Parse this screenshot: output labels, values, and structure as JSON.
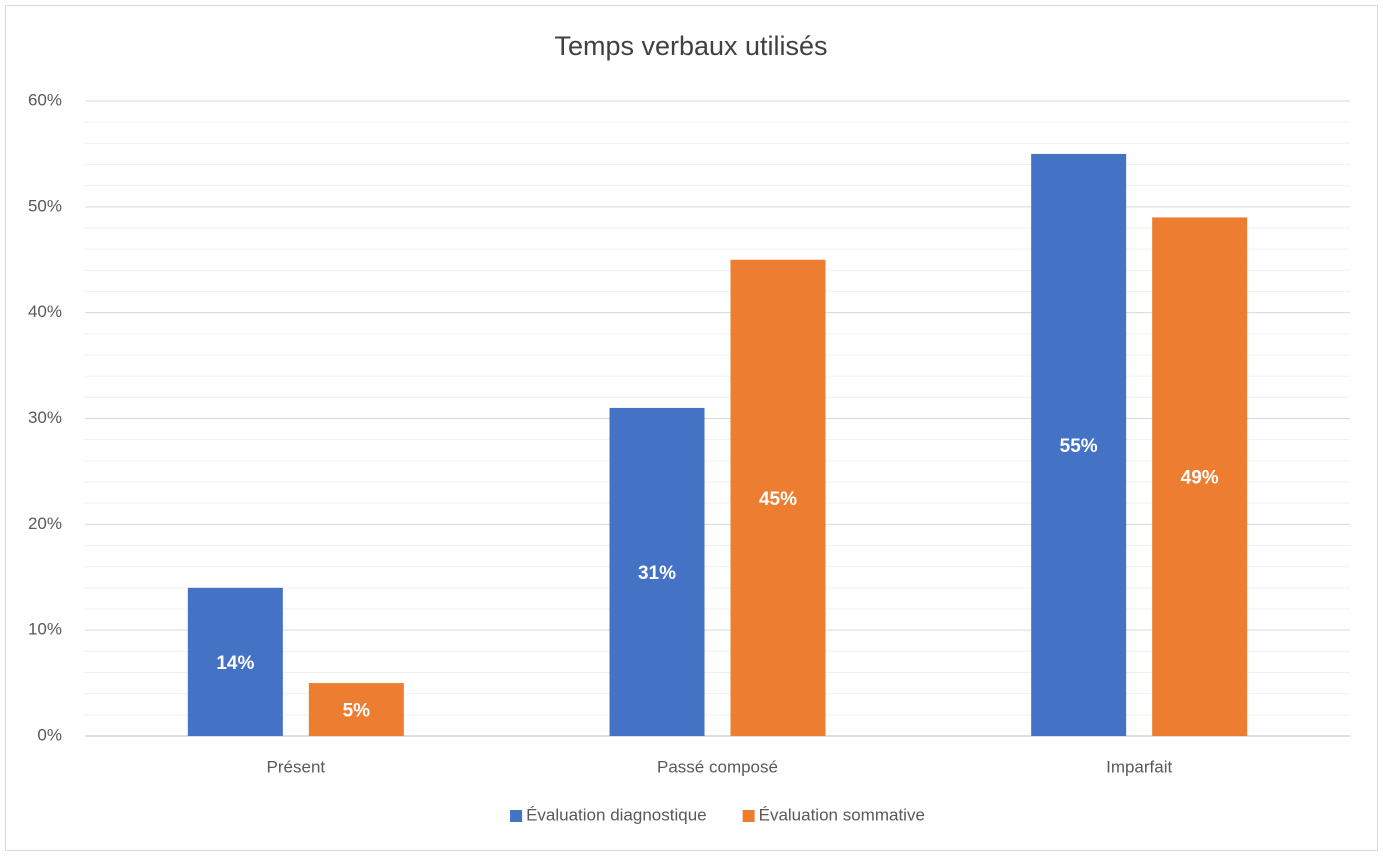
{
  "chart_data": {
    "type": "bar",
    "title": "Temps verbaux utilisés",
    "categories": [
      "Présent",
      "Passé composé",
      "Imparfait"
    ],
    "series": [
      {
        "name": "Évaluation diagnostique",
        "color": "#4472c4",
        "values": [
          14,
          31,
          55
        ],
        "value_labels": [
          "14%",
          "31%",
          "55%"
        ]
      },
      {
        "name": "Évaluation sommative",
        "color": "#ed7d31",
        "values": [
          5,
          45,
          49
        ],
        "value_labels": [
          "5%",
          "45%",
          "49%"
        ]
      }
    ],
    "ylim": [
      0,
      60
    ],
    "yticks": [
      {
        "value": 0,
        "label": "0%"
      },
      {
        "value": 10,
        "label": "10%"
      },
      {
        "value": 20,
        "label": "20%"
      },
      {
        "value": 30,
        "label": "30%"
      },
      {
        "value": 40,
        "label": "40%"
      },
      {
        "value": 50,
        "label": "50%"
      },
      {
        "value": 60,
        "label": "60%"
      }
    ],
    "minor_yticks": [
      2,
      4,
      6,
      8,
      12,
      14,
      16,
      18,
      22,
      24,
      26,
      28,
      32,
      34,
      36,
      38,
      42,
      44,
      46,
      48,
      52,
      54,
      56,
      58
    ],
    "grid": true,
    "legend": "bottom"
  }
}
